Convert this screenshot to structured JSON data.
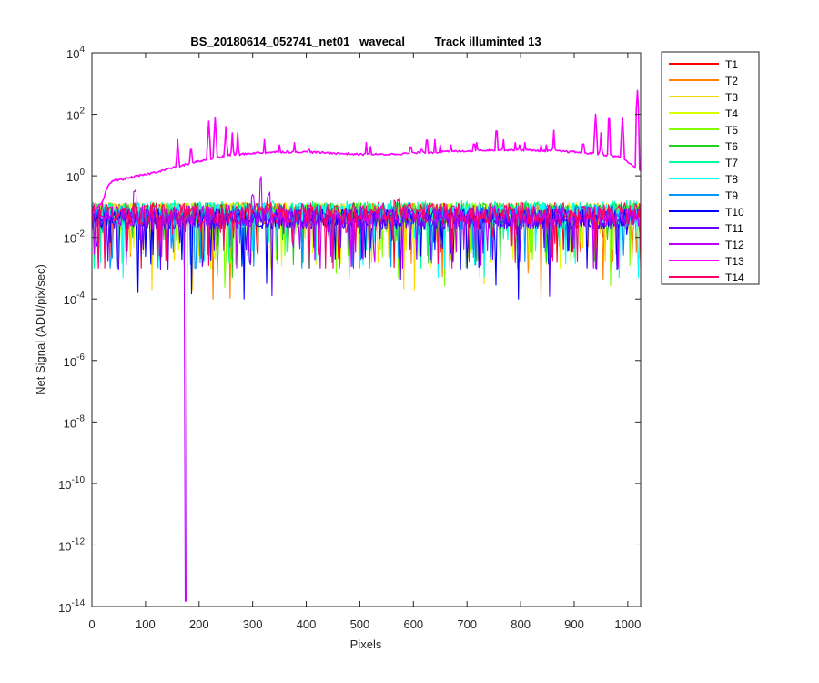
{
  "chart_data": {
    "type": "line",
    "title": "BS_20180614_052741_net01   wavecal         Track illuminted 13",
    "xlabel": "Pixels",
    "ylabel": "Net Signal (ADU/pix/sec)",
    "xlim": [
      0,
      1024
    ],
    "ylim": [
      1e-14,
      10000.0
    ],
    "yscale": "log",
    "grid": false,
    "legend_position": "outside-right",
    "x_ticks": [
      0,
      100,
      200,
      300,
      400,
      500,
      600,
      700,
      800,
      900,
      1000
    ],
    "x_tick_labels": [
      "0",
      "100",
      "200",
      "300",
      "400",
      "500",
      "600",
      "700",
      "800",
      "900",
      "1000"
    ],
    "y_ticks": [
      {
        "value": 10000.0,
        "base": "10",
        "exp": "4"
      },
      {
        "value": 100.0,
        "base": "10",
        "exp": "2"
      },
      {
        "value": 1.0,
        "base": "10",
        "exp": "0"
      },
      {
        "value": 0.01,
        "base": "10",
        "exp": "-2"
      },
      {
        "value": 0.0001,
        "base": "10",
        "exp": "-4"
      },
      {
        "value": 1e-06,
        "base": "10",
        "exp": "-6"
      },
      {
        "value": 1e-08,
        "base": "10",
        "exp": "-8"
      },
      {
        "value": 1e-10,
        "base": "10",
        "exp": "-10"
      },
      {
        "value": 1e-12,
        "base": "10",
        "exp": "-12"
      },
      {
        "value": 1e-14,
        "base": "10",
        "exp": "-14"
      }
    ],
    "series": [
      {
        "name": "T1",
        "color": "#ff0000",
        "level": 0.06,
        "min": 0.001
      },
      {
        "name": "T2",
        "color": "#ff8000",
        "level": 0.06,
        "min": 0.0001
      },
      {
        "name": "T3",
        "color": "#ffd700",
        "level": 0.06,
        "min": 0.0002
      },
      {
        "name": "T4",
        "color": "#d9ff00",
        "level": 0.06,
        "min": 0.001
      },
      {
        "name": "T5",
        "color": "#80ff00",
        "level": 0.06,
        "min": 0.0001
      },
      {
        "name": "T6",
        "color": "#1cd41c",
        "level": 0.06,
        "min": 0.0005
      },
      {
        "name": "T7",
        "color": "#00ff9f",
        "level": 0.07,
        "min": 0.001
      },
      {
        "name": "T8",
        "color": "#00ffff",
        "level": 0.06,
        "min": 0.0005
      },
      {
        "name": "T9",
        "color": "#0097ff",
        "level": 0.05,
        "min": 0.001
      },
      {
        "name": "T10",
        "color": "#0000ff",
        "level": 0.04,
        "min": 0.0001
      },
      {
        "name": "T11",
        "color": "#6400ff",
        "level": 0.04,
        "min": 0.0001
      },
      {
        "name": "T12",
        "color": "#c000ff",
        "level": 0.05,
        "min": 0.001,
        "peaks": [
          [
            80,
            0.4
          ],
          [
            300,
            0.3
          ],
          [
            315,
            1.0
          ],
          [
            330,
            0.3
          ]
        ],
        "dips": [
          [
            175,
            1.5e-14
          ]
        ]
      },
      {
        "name": "T13",
        "color": "#ff00ff",
        "illuminated": true,
        "profile": [
          [
            0,
            0.05
          ],
          [
            20,
            0.15
          ],
          [
            30,
            0.5
          ],
          [
            40,
            0.7
          ],
          [
            60,
            0.8
          ],
          [
            100,
            1.1
          ],
          [
            150,
            1.8
          ],
          [
            200,
            3
          ],
          [
            250,
            4.5
          ],
          [
            300,
            5.5
          ],
          [
            350,
            6
          ],
          [
            400,
            6
          ],
          [
            450,
            5.5
          ],
          [
            500,
            5
          ],
          [
            550,
            5
          ],
          [
            600,
            5.5
          ],
          [
            650,
            6
          ],
          [
            700,
            6.5
          ],
          [
            750,
            7
          ],
          [
            800,
            7
          ],
          [
            850,
            6.5
          ],
          [
            900,
            6
          ],
          [
            950,
            5
          ],
          [
            990,
            4
          ],
          [
            1010,
            2
          ],
          [
            1024,
            1.5
          ]
        ],
        "lines": [
          [
            160,
            15
          ],
          [
            185,
            10
          ],
          [
            218,
            60
          ],
          [
            230,
            80
          ],
          [
            250,
            40
          ],
          [
            262,
            25
          ],
          [
            272,
            25
          ],
          [
            322,
            15
          ],
          [
            350,
            10
          ],
          [
            365,
            9
          ],
          [
            378,
            12
          ],
          [
            405,
            10
          ],
          [
            512,
            12
          ],
          [
            520,
            9
          ],
          [
            595,
            12
          ],
          [
            615,
            10
          ],
          [
            625,
            20
          ],
          [
            640,
            15
          ],
          [
            650,
            10
          ],
          [
            670,
            10
          ],
          [
            713,
            15
          ],
          [
            718,
            12
          ],
          [
            755,
            40
          ],
          [
            768,
            15
          ],
          [
            790,
            12
          ],
          [
            798,
            10
          ],
          [
            808,
            12
          ],
          [
            838,
            10
          ],
          [
            848,
            10
          ],
          [
            862,
            30
          ],
          [
            917,
            15
          ],
          [
            940,
            100
          ],
          [
            950,
            25
          ],
          [
            965,
            100
          ],
          [
            990,
            80
          ],
          [
            1018,
            600
          ]
        ]
      },
      {
        "name": "T14",
        "color": "#ff0066",
        "level": 0.06,
        "min": 0.001,
        "peaks": [
          [
            565,
            0.2
          ],
          [
            572,
            0.2
          ]
        ]
      }
    ]
  }
}
